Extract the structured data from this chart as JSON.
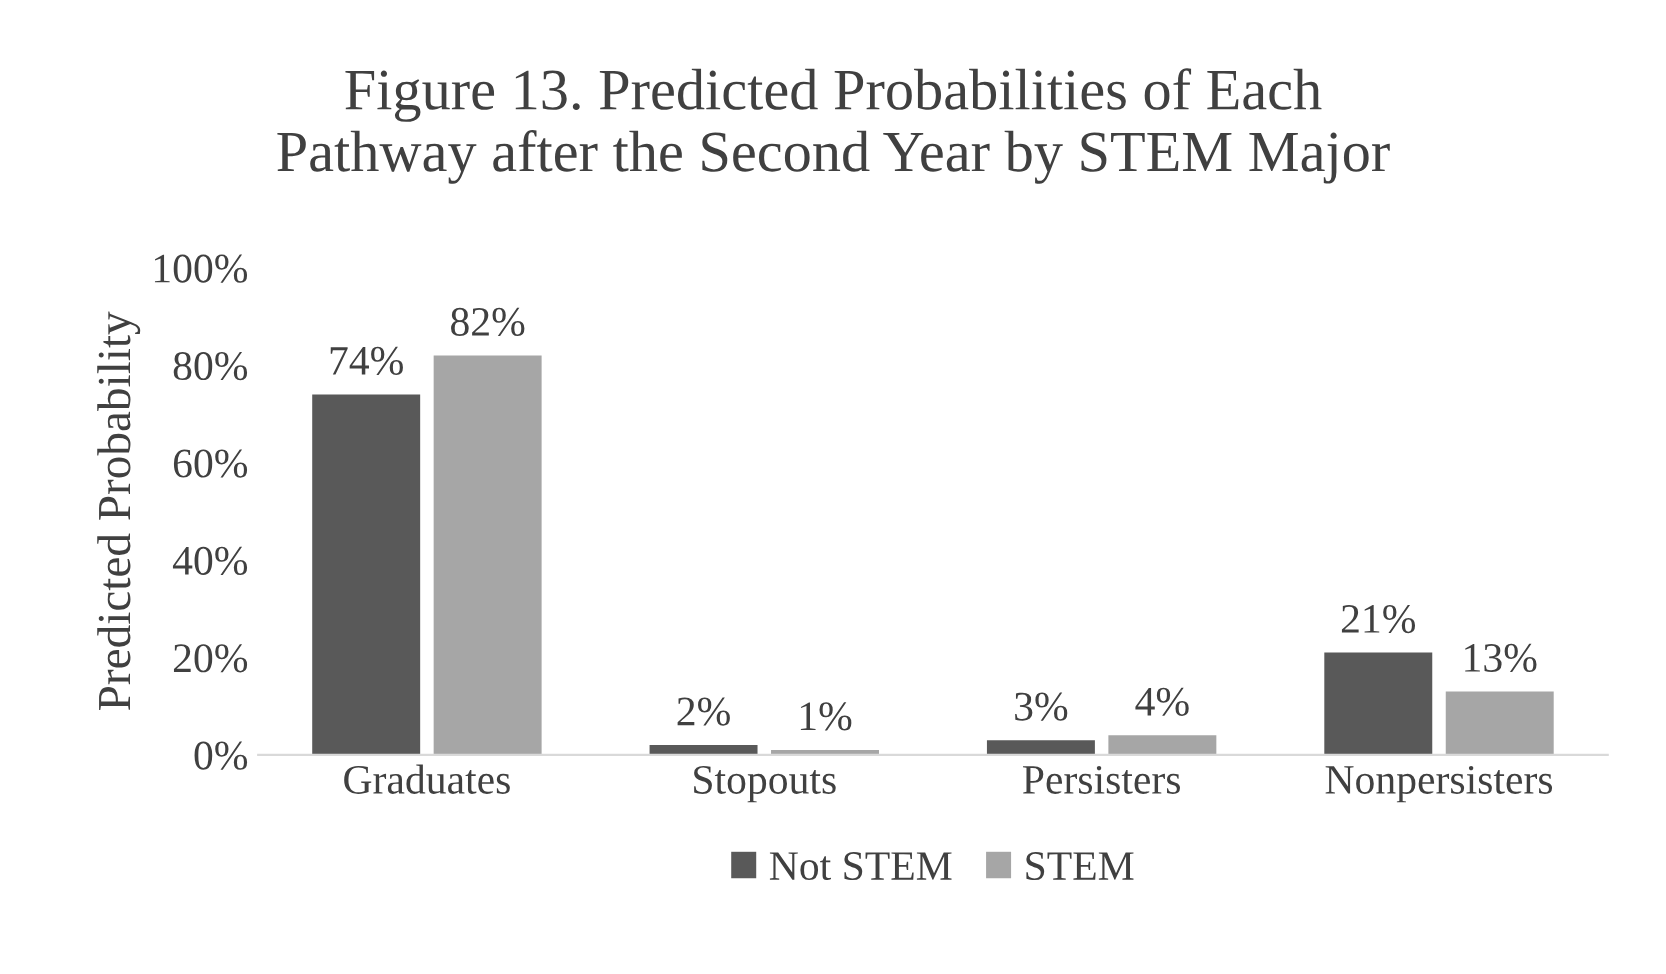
{
  "chart_data": {
    "type": "bar",
    "title": "Figure 13. Predicted Probabilities of Each\nPathway after the Second Year by STEM Major",
    "ylabel": "Predicted Probability",
    "categories": [
      "Graduates",
      "Stopouts",
      "Persisters",
      "Nonpersisters"
    ],
    "series": [
      {
        "name": "Not STEM",
        "color": "#595959",
        "values": [
          74,
          2,
          3,
          21
        ],
        "value_labels": [
          "74%",
          "2%",
          "3%",
          "21%"
        ]
      },
      {
        "name": "STEM",
        "color": "#a6a6a6",
        "values": [
          82,
          1,
          4,
          13
        ],
        "value_labels": [
          "82%",
          "1%",
          "4%",
          "13%"
        ]
      }
    ],
    "ylim": [
      0,
      100
    ],
    "yticks": [
      {
        "value": 0,
        "label": "0%"
      },
      {
        "value": 20,
        "label": "20%"
      },
      {
        "value": 40,
        "label": "40%"
      },
      {
        "value": 60,
        "label": "60%"
      },
      {
        "value": 80,
        "label": "80%"
      },
      {
        "value": 100,
        "label": "100%"
      }
    ],
    "grid": false,
    "legend": "bottom"
  }
}
